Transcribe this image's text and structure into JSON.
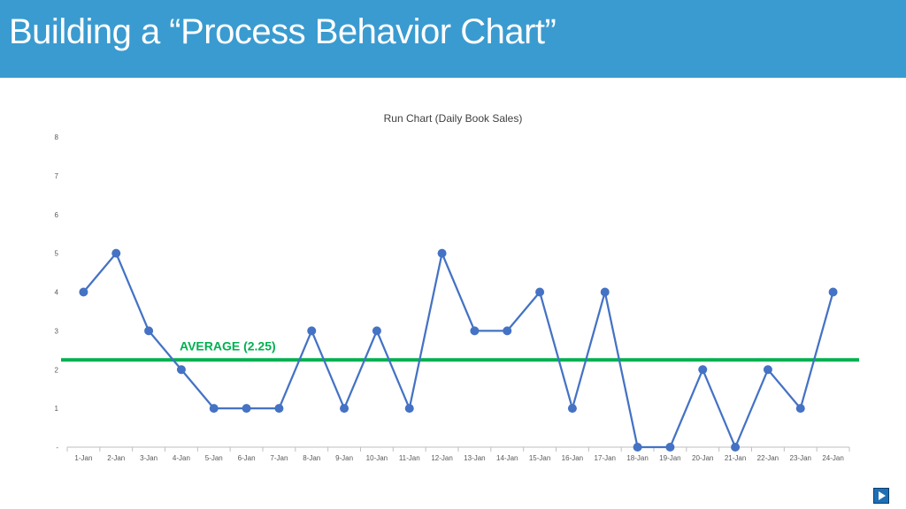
{
  "slide": {
    "title": "Building a “Process Behavior Chart”"
  },
  "chart_data": {
    "type": "line",
    "title": "Run Chart (Daily Book Sales)",
    "xlabel": "",
    "ylabel": "",
    "categories": [
      "1-Jan",
      "2-Jan",
      "3-Jan",
      "4-Jan",
      "5-Jan",
      "6-Jan",
      "7-Jan",
      "8-Jan",
      "9-Jan",
      "10-Jan",
      "11-Jan",
      "12-Jan",
      "13-Jan",
      "14-Jan",
      "15-Jan",
      "16-Jan",
      "17-Jan",
      "18-Jan",
      "19-Jan",
      "20-Jan",
      "21-Jan",
      "22-Jan",
      "23-Jan",
      "24-Jan"
    ],
    "values": [
      4,
      5,
      3,
      2,
      1,
      1,
      1,
      3,
      1,
      3,
      1,
      5,
      3,
      3,
      4,
      1,
      4,
      0,
      0,
      2,
      0,
      2,
      1,
      4
    ],
    "ylim": [
      0,
      8
    ],
    "yticks": [
      0,
      1,
      2,
      3,
      4,
      5,
      6,
      7,
      8
    ],
    "ytick_labels": [
      "-",
      "1",
      "2",
      "3",
      "4",
      "5",
      "6",
      "7",
      "8"
    ],
    "grid": false,
    "average": {
      "value": 2.25,
      "label": "AVERAGE (2.25)"
    },
    "colors": {
      "line": "#4472c4",
      "marker": "#4472c4",
      "average": "#00b050",
      "axis": "#bfbfbf",
      "tick_text": "#595959"
    }
  },
  "icons": {
    "next": "next-slide-icon"
  },
  "colors": {
    "title_bar": "#3a9bd0"
  }
}
